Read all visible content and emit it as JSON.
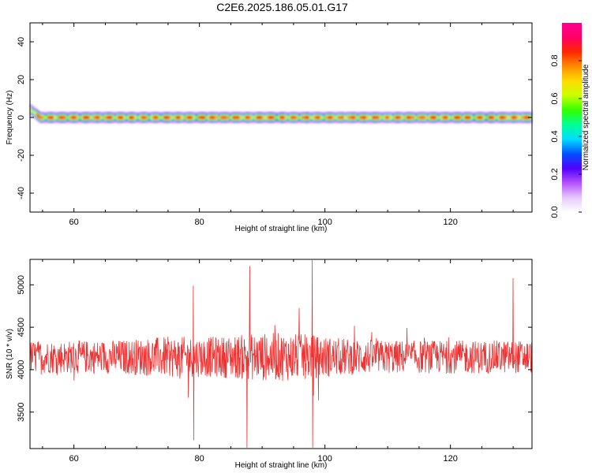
{
  "title": "C2E6.2025.186.05.01.G17",
  "colors": {
    "snr_line": "#f03232",
    "colormap": [
      "#ffffff",
      "#e6c8ff",
      "#b450ff",
      "#5000ff",
      "#0050ff",
      "#00dcff",
      "#00ff96",
      "#32ff00",
      "#c8ff00",
      "#ffdc00",
      "#ff8c00",
      "#ff2800",
      "#ff0064",
      "#ff0096"
    ]
  },
  "chart_data": [
    {
      "type": "heatmap",
      "title": "",
      "xlabel": "Height of straight line (km)",
      "ylabel": "Frequency (Hz)",
      "xlim": [
        53,
        133
      ],
      "ylim": [
        -50,
        50
      ],
      "xticks": [
        60,
        80,
        100,
        120
      ],
      "yticks": [
        -40,
        -20,
        0,
        20,
        40
      ],
      "colorbar": {
        "label": "Normalized spectral amplitude",
        "range": [
          0,
          1
        ],
        "ticks": [
          0.0,
          0.2,
          0.4,
          0.6,
          0.8
        ]
      },
      "band": {
        "center_frequency": 0,
        "initial_frequency": 4,
        "half_width": 3,
        "peak_amplitude": 1.0
      }
    },
    {
      "type": "line",
      "title": "",
      "xlabel": "Height of straight line (km)",
      "ylabel": "SNR (10 * v/v)",
      "xlim": [
        53,
        133
      ],
      "ylim": [
        3070,
        5300
      ],
      "xticks": [
        60,
        80,
        100,
        120
      ],
      "yticks": [
        3500,
        4000,
        4500,
        5000
      ],
      "series": [
        {
          "mean": 4150,
          "spread": 260,
          "notable_peaks": [
            [
              79,
              4990
            ],
            [
              88,
              5220
            ],
            [
              98,
              5290
            ],
            [
              130,
              5080
            ]
          ],
          "notable_dips": [
            [
              79,
              3170
            ],
            [
              87.5,
              3080
            ],
            [
              98,
              3080
            ]
          ]
        }
      ]
    }
  ]
}
